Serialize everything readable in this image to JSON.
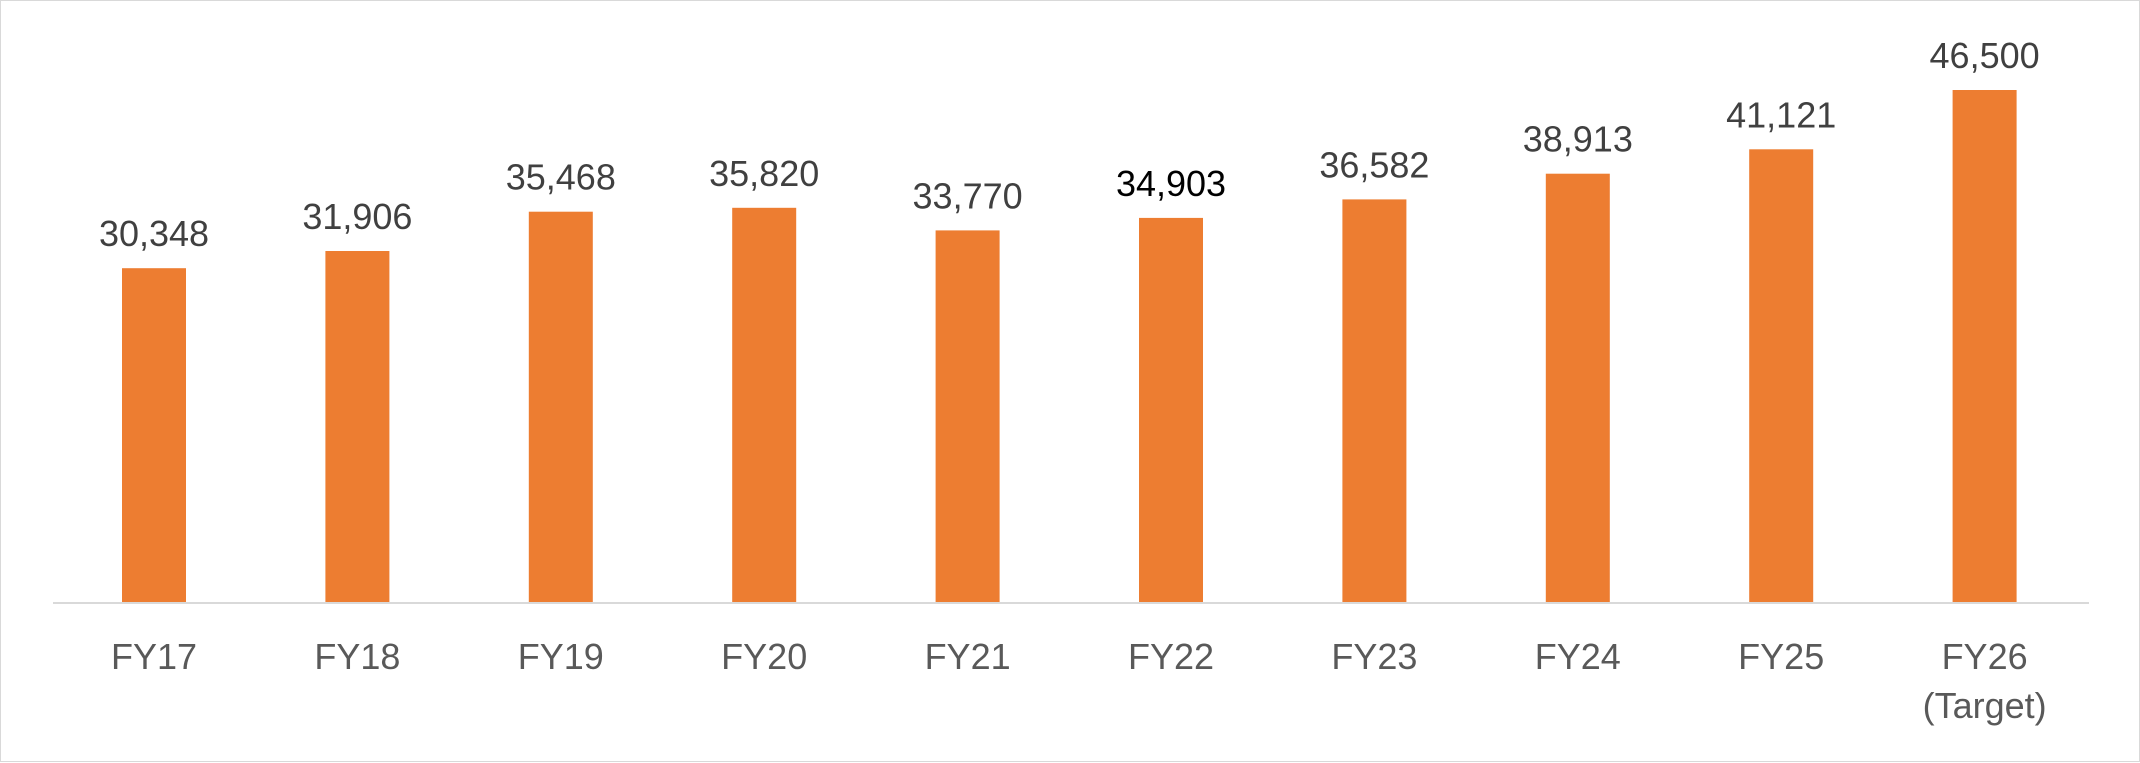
{
  "chart_data": {
    "type": "bar",
    "categories": [
      "FY17",
      "FY18",
      "FY19",
      "FY20",
      "FY21",
      "FY22",
      "FY23",
      "FY24",
      "FY25",
      "FY26\n(Target)"
    ],
    "values": [
      30348,
      31906,
      35468,
      35820,
      33770,
      34903,
      36582,
      38913,
      41121,
      46500
    ],
    "value_labels": [
      "30,348",
      "31,906",
      "35,468",
      "35,820",
      "33,770",
      "34,903",
      "36,582",
      "38,913",
      "41,121",
      "46,500"
    ],
    "title": "",
    "xlabel": "",
    "ylabel": "",
    "ylim": [
      0,
      46500
    ],
    "grid": false,
    "legend": "none",
    "bar_color": "#ed7d31",
    "highlighted_label_index": 5
  }
}
